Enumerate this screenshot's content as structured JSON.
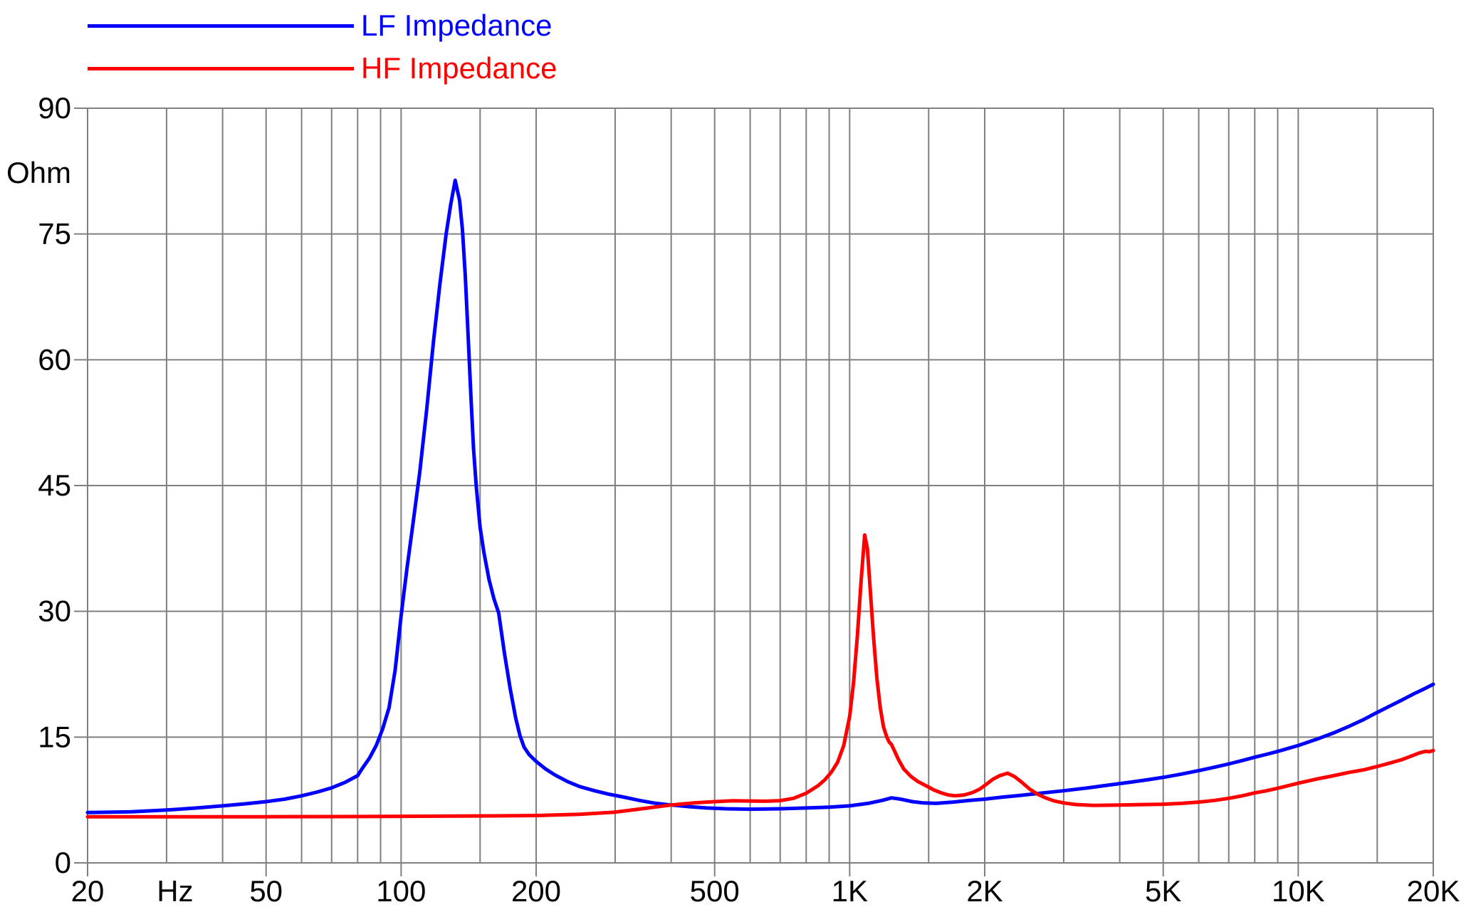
{
  "legend": {
    "items": [
      {
        "label": "LF Impedance",
        "color": "#0000ff"
      },
      {
        "label": "HF Impedance",
        "color": "#ff0000"
      }
    ]
  },
  "colors": {
    "background": "#ffffff",
    "grid": "#808080",
    "text": "#000000",
    "lf_curve": "#0000ff",
    "hf_curve": "#ff0000"
  },
  "chart_data": {
    "type": "line",
    "title": "",
    "grid": true,
    "legend_position": "top-left",
    "x_axis": {
      "scale": "log",
      "min": 20,
      "max": 20000,
      "unit_label": "Hz",
      "tick_values": [
        20,
        50,
        100,
        200,
        500,
        1000,
        2000,
        5000,
        10000,
        20000
      ],
      "tick_labels": [
        "20",
        "50",
        "100",
        "200",
        "500",
        "1K",
        "2K",
        "5K",
        "10K",
        "20K"
      ],
      "gridlines": [
        20,
        30,
        40,
        50,
        60,
        70,
        80,
        90,
        100,
        150,
        200,
        300,
        400,
        500,
        600,
        700,
        800,
        900,
        1000,
        1500,
        2000,
        3000,
        4000,
        5000,
        6000,
        7000,
        8000,
        9000,
        10000,
        15000,
        20000
      ]
    },
    "y_axis": {
      "scale": "linear",
      "min": 0,
      "max": 90,
      "unit_label": "Ohm",
      "ticks": [
        0,
        15,
        30,
        45,
        60,
        75,
        90
      ],
      "tick_labels": [
        "0",
        "15",
        "30",
        "45",
        "60",
        "75",
        "90"
      ]
    },
    "series": [
      {
        "name": "LF Impedance",
        "color": "#0000ff",
        "points": [
          [
            20,
            6
          ],
          [
            25,
            6.1
          ],
          [
            30,
            6.3
          ],
          [
            35,
            6.55
          ],
          [
            40,
            6.8
          ],
          [
            45,
            7.05
          ],
          [
            50,
            7.3
          ],
          [
            55,
            7.6
          ],
          [
            60,
            8
          ],
          [
            65,
            8.45
          ],
          [
            70,
            8.95
          ],
          [
            75,
            9.6
          ],
          [
            80,
            10.4
          ],
          [
            82,
            11.3
          ],
          [
            85,
            12.5
          ],
          [
            88,
            14
          ],
          [
            91,
            16
          ],
          [
            94,
            18.5
          ],
          [
            97,
            23
          ],
          [
            100,
            29.5
          ],
          [
            103,
            35
          ],
          [
            106,
            40
          ],
          [
            110,
            46.5
          ],
          [
            114,
            54
          ],
          [
            118,
            62
          ],
          [
            122,
            69
          ],
          [
            126,
            75
          ],
          [
            129,
            78.5
          ],
          [
            132,
            81.4
          ],
          [
            135,
            79
          ],
          [
            137,
            75.5
          ],
          [
            139,
            70
          ],
          [
            141,
            63
          ],
          [
            143,
            56
          ],
          [
            145,
            49.5
          ],
          [
            147,
            45
          ],
          [
            150,
            40
          ],
          [
            153,
            37
          ],
          [
            157,
            33.8
          ],
          [
            161,
            31.5
          ],
          [
            165,
            29.8
          ],
          [
            170,
            25
          ],
          [
            175,
            20.8
          ],
          [
            180,
            17.3
          ],
          [
            184,
            15.2
          ],
          [
            188,
            13.8
          ],
          [
            193,
            12.9
          ],
          [
            200,
            12.1
          ],
          [
            210,
            11.2
          ],
          [
            220,
            10.5
          ],
          [
            235,
            9.7
          ],
          [
            250,
            9.1
          ],
          [
            270,
            8.6
          ],
          [
            290,
            8.2
          ],
          [
            310,
            7.9
          ],
          [
            340,
            7.45
          ],
          [
            370,
            7.1
          ],
          [
            400,
            6.9
          ],
          [
            440,
            6.7
          ],
          [
            480,
            6.55
          ],
          [
            530,
            6.45
          ],
          [
            600,
            6.4
          ],
          [
            700,
            6.45
          ],
          [
            800,
            6.55
          ],
          [
            900,
            6.65
          ],
          [
            1000,
            6.8
          ],
          [
            1100,
            7.1
          ],
          [
            1180,
            7.45
          ],
          [
            1240,
            7.75
          ],
          [
            1300,
            7.6
          ],
          [
            1380,
            7.3
          ],
          [
            1460,
            7.15
          ],
          [
            1560,
            7.1
          ],
          [
            1700,
            7.25
          ],
          [
            1850,
            7.45
          ],
          [
            2000,
            7.6
          ],
          [
            2200,
            7.85
          ],
          [
            2400,
            8.05
          ],
          [
            2700,
            8.35
          ],
          [
            3000,
            8.6
          ],
          [
            3400,
            8.95
          ],
          [
            3800,
            9.3
          ],
          [
            4200,
            9.6
          ],
          [
            4600,
            9.9
          ],
          [
            5000,
            10.2
          ],
          [
            5500,
            10.6
          ],
          [
            6000,
            11
          ],
          [
            6500,
            11.4
          ],
          [
            7000,
            11.8
          ],
          [
            7500,
            12.2
          ],
          [
            8000,
            12.6
          ],
          [
            8500,
            12.95
          ],
          [
            9000,
            13.3
          ],
          [
            9500,
            13.65
          ],
          [
            10000,
            14
          ],
          [
            11000,
            14.75
          ],
          [
            12000,
            15.5
          ],
          [
            13000,
            16.3
          ],
          [
            14000,
            17.1
          ],
          [
            15000,
            17.95
          ],
          [
            16000,
            18.7
          ],
          [
            17000,
            19.4
          ],
          [
            18000,
            20.1
          ],
          [
            19000,
            20.7
          ],
          [
            20000,
            21.3
          ]
        ]
      },
      {
        "name": "HF Impedance",
        "color": "#ff0000",
        "points": [
          [
            20,
            5.5
          ],
          [
            30,
            5.5
          ],
          [
            40,
            5.5
          ],
          [
            50,
            5.5
          ],
          [
            70,
            5.52
          ],
          [
            100,
            5.55
          ],
          [
            130,
            5.58
          ],
          [
            160,
            5.6
          ],
          [
            200,
            5.65
          ],
          [
            250,
            5.8
          ],
          [
            300,
            6.05
          ],
          [
            350,
            6.5
          ],
          [
            400,
            6.9
          ],
          [
            450,
            7.15
          ],
          [
            500,
            7.3
          ],
          [
            550,
            7.4
          ],
          [
            600,
            7.38
          ],
          [
            650,
            7.35
          ],
          [
            700,
            7.42
          ],
          [
            750,
            7.7
          ],
          [
            800,
            8.3
          ],
          [
            850,
            9.2
          ],
          [
            880,
            9.9
          ],
          [
            910,
            10.8
          ],
          [
            940,
            12
          ],
          [
            970,
            14
          ],
          [
            1000,
            17.5
          ],
          [
            1020,
            21.5
          ],
          [
            1040,
            27
          ],
          [
            1060,
            33.5
          ],
          [
            1080,
            39.1
          ],
          [
            1095,
            37.5
          ],
          [
            1110,
            33
          ],
          [
            1130,
            27
          ],
          [
            1150,
            22
          ],
          [
            1170,
            18.5
          ],
          [
            1190,
            16.2
          ],
          [
            1210,
            15
          ],
          [
            1225,
            14.4
          ],
          [
            1240,
            14.1
          ],
          [
            1260,
            13.3
          ],
          [
            1285,
            12.3
          ],
          [
            1320,
            11.2
          ],
          [
            1370,
            10.3
          ],
          [
            1420,
            9.7
          ],
          [
            1480,
            9.2
          ],
          [
            1540,
            8.7
          ],
          [
            1600,
            8.35
          ],
          [
            1660,
            8.1
          ],
          [
            1720,
            8
          ],
          [
            1800,
            8.1
          ],
          [
            1880,
            8.4
          ],
          [
            1950,
            8.8
          ],
          [
            2020,
            9.4
          ],
          [
            2090,
            10
          ],
          [
            2160,
            10.4
          ],
          [
            2250,
            10.7
          ],
          [
            2330,
            10.3
          ],
          [
            2420,
            9.6
          ],
          [
            2520,
            8.8
          ],
          [
            2620,
            8.2
          ],
          [
            2720,
            7.8
          ],
          [
            2850,
            7.4
          ],
          [
            3000,
            7.15
          ],
          [
            3200,
            6.95
          ],
          [
            3500,
            6.85
          ],
          [
            4000,
            6.9
          ],
          [
            4500,
            6.95
          ],
          [
            5000,
            7
          ],
          [
            5500,
            7.1
          ],
          [
            6000,
            7.25
          ],
          [
            6500,
            7.45
          ],
          [
            7000,
            7.7
          ],
          [
            7500,
            8
          ],
          [
            8000,
            8.35
          ],
          [
            8500,
            8.6
          ],
          [
            9000,
            8.9
          ],
          [
            9500,
            9.2
          ],
          [
            10000,
            9.5
          ],
          [
            11000,
            10
          ],
          [
            12000,
            10.4
          ],
          [
            13000,
            10.8
          ],
          [
            14000,
            11.1
          ],
          [
            15000,
            11.5
          ],
          [
            16000,
            11.9
          ],
          [
            17000,
            12.3
          ],
          [
            18000,
            12.8
          ],
          [
            18600,
            13.1
          ],
          [
            19200,
            13.3
          ],
          [
            19600,
            13.25
          ],
          [
            20000,
            13.4
          ]
        ]
      }
    ]
  }
}
